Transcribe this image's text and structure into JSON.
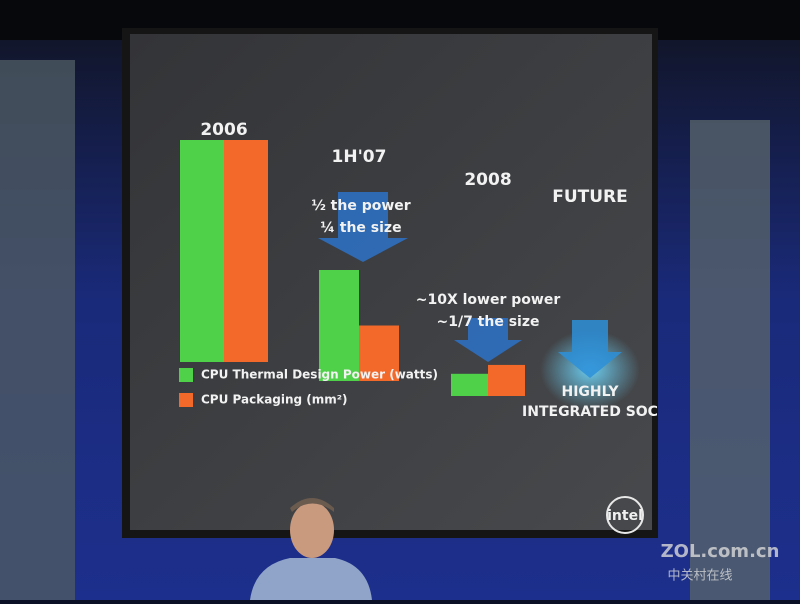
{
  "chart_data": {
    "type": "bar",
    "categories": [
      "2006",
      "1H'07",
      "2008",
      "FUTURE"
    ],
    "series": [
      {
        "name": "CPU Thermal Design Power (watts)",
        "color": "#4fd14a",
        "values": [
          100,
          50,
          10,
          null
        ]
      },
      {
        "name": "CPU Packaging (mm²)",
        "color": "#f2692a",
        "values": [
          100,
          25,
          14,
          null
        ]
      }
    ],
    "annotations": [
      "½ the power",
      "¼ the size",
      "~10X lower power",
      "~1/7 the size",
      "HIGHLY",
      "INTEGRATED SOC"
    ],
    "logo": "intel",
    "watermark": [
      "ZOL.com.cn",
      "中关村在线"
    ]
  }
}
